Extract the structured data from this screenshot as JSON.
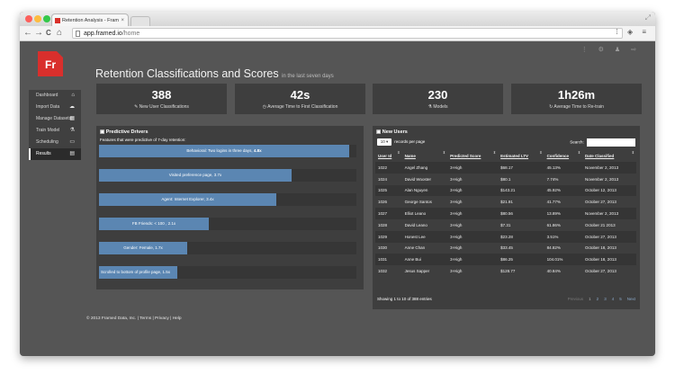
{
  "browser": {
    "tab_title": "Retention Analysis - Fram",
    "tab_close": "×",
    "url_host": "app.framed.io",
    "url_path": "/home",
    "nav": {
      "back": "←",
      "forward": "→",
      "reload": "C",
      "home": "⌂"
    },
    "right_icons": "⁞ ◈ ≡"
  },
  "app": {
    "logo": "Fr",
    "top_icons": "⋮ ⚙ ♟ ⇨",
    "sidebar": {
      "items": [
        {
          "label": "Dashboard",
          "icon": "⌂"
        },
        {
          "label": "Import Data",
          "icon": "☁"
        },
        {
          "label": "Manage Datasets",
          "icon": "▦"
        },
        {
          "label": "Train Model",
          "icon": "⚗"
        },
        {
          "label": "Scheduling",
          "icon": "▭"
        },
        {
          "label": "Results",
          "icon": "▤"
        }
      ],
      "active_index": 5
    },
    "page": {
      "title": "Retention Classifications and Scores",
      "subtitle": "in the last seven days"
    },
    "stats": [
      {
        "value": "388",
        "label": "✎ New User Classifications"
      },
      {
        "value": "42s",
        "label": "◷ Average Time to First Classification"
      },
      {
        "value": "230",
        "label": "⚗ Models"
      },
      {
        "value": "1h26m",
        "label": "↻ Average Time to Re-train"
      }
    ],
    "drivers": {
      "heading": "▣ Predictive Drivers",
      "subheading": "Features that were predictive of 7-day retention:",
      "bars": [
        {
          "label": "Behavioral: Two logins in three days,",
          "value_text": "4.8x",
          "value": 4.8
        },
        {
          "label": "Visited preference page, 3.7x",
          "value_text": "",
          "value": 3.7
        },
        {
          "label": "Agent: Internet Explorer, 3.4x",
          "value_text": "",
          "value": 3.4
        },
        {
          "label": "FB Friends: < 100 , 2.1x",
          "value_text": "",
          "value": 2.1
        },
        {
          "label": "Gender: Female, 1.7x",
          "value_text": "",
          "value": 1.7
        },
        {
          "label": "Scrolled to bottom of profile page, 1.5x",
          "value_text": "",
          "value": 1.5
        }
      ]
    },
    "users": {
      "heading": "▣ New Users",
      "page_size": "10 ▾",
      "page_size_suffix": "records per page",
      "search_label": "Search:",
      "columns": [
        "User Id",
        "Name",
        "Predicted Score",
        "Estimated LTV",
        "Confidence",
        "Date Classified"
      ],
      "rows": [
        [
          "1022",
          "Angel Zhang",
          "3-High",
          "$68.17",
          "45.13%",
          "November 2, 2013"
        ],
        [
          "1024",
          "David Wooster",
          "3-High",
          "$80.1",
          "7.74%",
          "November 2, 2013"
        ],
        [
          "1025",
          "Alan Nguyen",
          "3-High",
          "$143.21",
          "45.92%",
          "October 12, 2013"
        ],
        [
          "1026",
          "George Santos",
          "3-High",
          "$21.91",
          "41.77%",
          "October 27, 2013"
        ],
        [
          "1027",
          "Elliot Leano",
          "3-High",
          "$80.56",
          "13.89%",
          "November 2, 2013"
        ],
        [
          "1028",
          "David Leano",
          "3-High",
          "$7.31",
          "61.86%",
          "October 21 2013"
        ],
        [
          "1029",
          "Honest Lee",
          "3-High",
          "$23.28",
          "3.51%",
          "October 27, 2013"
        ],
        [
          "1030",
          "Anne Chan",
          "3-High",
          "$33.45",
          "84.82%",
          "October 18, 2013"
        ],
        [
          "1031",
          "Anne Bui",
          "3-High",
          "$86.25",
          "104.01%",
          "October 18, 2013"
        ],
        [
          "1032",
          "Jesus Sapper",
          "3-High",
          "$128.77",
          "40.84%",
          "October 27, 2013"
        ]
      ],
      "info": "Showing 1 to 10 of 388 entries",
      "pager": {
        "prev": "Previous",
        "pages": [
          "1",
          "2",
          "3",
          "4",
          "5"
        ],
        "next": "Next"
      }
    },
    "footer": "© 2013 Framed Data, Inc. | Terms | Privacy | Help"
  }
}
